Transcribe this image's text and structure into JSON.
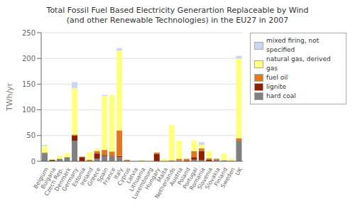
{
  "chart_data": {
    "type": "bar",
    "title": "Total Fossil Fuel Based Electricity Generartion Replaceable by Wind\n(and other Renewable Technologies) in the EU27 in 2007",
    "ylabel": "TWh/yr",
    "categories": [
      "Belgium",
      "Bulgaria",
      "Czech Rep.",
      "Denmark",
      "Germany",
      "Estonia",
      "Ireland",
      "Greece",
      "Spain",
      "France",
      "Italy",
      "Cyprus",
      "Latvia",
      "Lithuania",
      "Luxembourg",
      "Hungary",
      "Malta",
      "Netherlands",
      "Austria",
      "Poland",
      "Portugal",
      "Romania",
      "Slovenia",
      "Slovakia",
      "Finland",
      "Sweden",
      "UK"
    ],
    "series": [
      {
        "name": "hard coal",
        "color": "#808080",
        "values": [
          15,
          1,
          5,
          8,
          40,
          0,
          0,
          5,
          10,
          11,
          8,
          0,
          0,
          0,
          0,
          0,
          0,
          0,
          2,
          0,
          3,
          2,
          0,
          3,
          2,
          1,
          40
        ]
      },
      {
        "name": "lignite",
        "color": "#8b2000",
        "values": [
          0,
          2,
          0,
          0,
          10,
          8,
          0,
          10,
          2,
          0,
          2,
          0,
          0,
          0,
          0,
          14,
          0,
          0,
          0,
          2,
          5,
          18,
          3,
          0,
          0,
          0,
          0
        ]
      },
      {
        "name": "fuel oil",
        "color": "#e07820",
        "values": [
          2,
          0,
          0,
          0,
          2,
          1,
          3,
          5,
          10,
          8,
          50,
          3,
          0,
          1,
          0,
          3,
          0,
          2,
          3,
          3,
          12,
          5,
          3,
          2,
          0,
          0,
          5
        ]
      },
      {
        "name": "natural gas, derived gas",
        "color": "#ffff80",
        "values": [
          13,
          2,
          6,
          7,
          90,
          0,
          15,
          5,
          105,
          110,
          155,
          0,
          0,
          2,
          2,
          0,
          5,
          68,
          35,
          1,
          20,
          7,
          14,
          0,
          13,
          5,
          155
        ]
      },
      {
        "name": "mixed firing, not specified",
        "color": "#c8d8f0",
        "values": [
          2,
          0,
          0,
          0,
          12,
          0,
          0,
          0,
          2,
          0,
          5,
          0,
          0,
          0,
          0,
          0,
          0,
          0,
          0,
          0,
          0,
          5,
          0,
          0,
          0,
          0,
          5
        ]
      }
    ],
    "ylim": [
      0,
      250
    ],
    "yticks": [
      0,
      50,
      100,
      150,
      200,
      250
    ],
    "stacked": true,
    "grid": true,
    "legend": "upper right"
  }
}
